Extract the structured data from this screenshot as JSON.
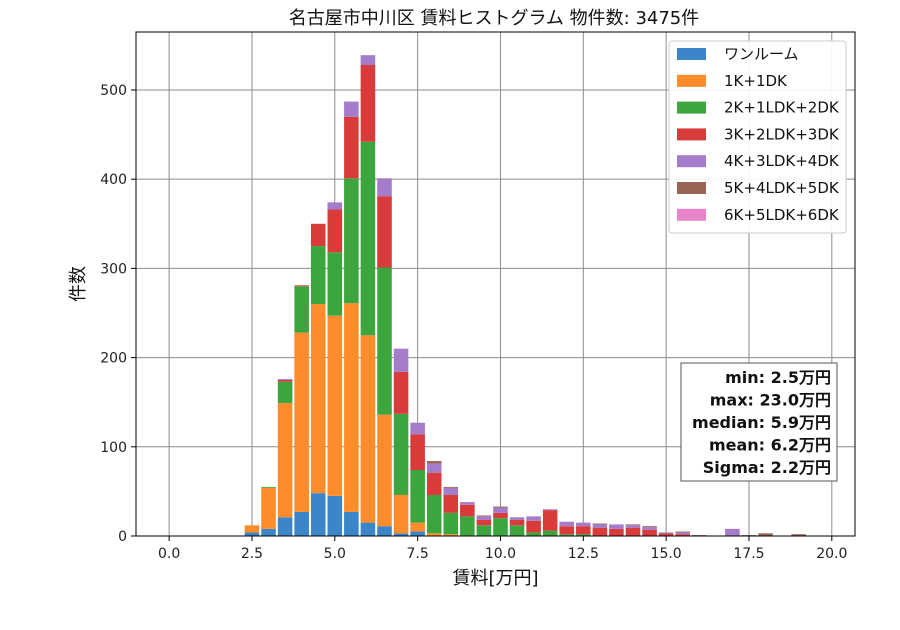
{
  "chart_data": {
    "type": "bar",
    "stacked": true,
    "title": "名古屋市中川区 賃料ヒストグラム 物件数: 3475件",
    "xlabel": "賃料[万円]",
    "ylabel": "件数",
    "xlim": [
      -1.0,
      20.7
    ],
    "ylim": [
      0,
      565
    ],
    "xticks": [
      "0.0",
      "2.5",
      "5.0",
      "7.5",
      "10.0",
      "12.5",
      "15.0",
      "17.5",
      "20.0"
    ],
    "xtick_values": [
      0,
      2.5,
      5,
      7.5,
      10,
      12.5,
      15,
      17.5,
      20
    ],
    "yticks": [
      0,
      100,
      200,
      300,
      400,
      500
    ],
    "grid": true,
    "bin_width": 0.5,
    "legend_position": "top-right",
    "x": [
      2.5,
      3.0,
      3.5,
      4.0,
      4.5,
      5.0,
      5.5,
      6.0,
      6.5,
      7.0,
      7.5,
      8.0,
      8.5,
      9.0,
      9.5,
      10.0,
      10.5,
      11.0,
      11.5,
      12.0,
      12.5,
      13.0,
      13.5,
      14.0,
      14.5,
      15.0,
      15.5,
      16.0,
      16.5,
      17.0,
      17.5,
      18.0,
      18.5,
      19.0,
      19.5,
      20.0
    ],
    "series": [
      {
        "name": "ワンルーム",
        "color": "#3a86c8",
        "values": [
          4,
          8,
          21,
          27,
          48,
          45,
          27,
          15,
          11,
          3,
          5,
          0,
          0,
          0,
          0,
          0,
          0,
          0,
          0,
          0,
          0,
          0,
          0,
          0,
          0,
          0,
          0,
          0,
          0,
          0,
          0,
          0,
          0,
          0,
          0,
          0
        ]
      },
      {
        "name": "1K+1DK",
        "color": "#ff8c2a",
        "values": [
          8,
          46,
          128,
          201,
          212,
          202,
          234,
          210,
          125,
          43,
          10,
          3,
          2,
          0,
          0,
          0,
          0,
          0,
          0,
          0,
          0,
          0,
          0,
          0,
          0,
          0,
          0,
          0,
          0,
          0,
          0,
          0,
          0,
          0,
          0,
          0
        ]
      },
      {
        "name": "2K+1LDK+2DK",
        "color": "#3da53d",
        "values": [
          0,
          1,
          24,
          52,
          65,
          71,
          140,
          217,
          165,
          91,
          59,
          43,
          24,
          22,
          12,
          20,
          12,
          4,
          6,
          2,
          2,
          0,
          0,
          0,
          0,
          0,
          0,
          0,
          0,
          0,
          0,
          0,
          0,
          0,
          0,
          0
        ]
      },
      {
        "name": "3K+2LDK+3DK",
        "color": "#d93b3b",
        "values": [
          0,
          0,
          2,
          1,
          25,
          48,
          69,
          86,
          80,
          47,
          40,
          25,
          20,
          13,
          6,
          6,
          6,
          13,
          23,
          9,
          9,
          9,
          8,
          9,
          7,
          3,
          2,
          0,
          0,
          0,
          0,
          0,
          0,
          0,
          0,
          0
        ]
      },
      {
        "name": "4K+3LDK+4DK",
        "color": "#a57cc9",
        "values": [
          0,
          0,
          1,
          0,
          0,
          8,
          17,
          11,
          20,
          26,
          13,
          10,
          8,
          3,
          4,
          6,
          3,
          5,
          1,
          5,
          4,
          4,
          5,
          3,
          3,
          1,
          2,
          0,
          0,
          8,
          0,
          0,
          0,
          0,
          0,
          0
        ]
      },
      {
        "name": "5K+4LDK+5DK",
        "color": "#9a6557",
        "values": [
          0,
          0,
          0,
          0,
          0,
          0,
          0,
          0,
          0,
          0,
          0,
          3,
          1,
          0,
          1,
          1,
          0,
          0,
          0,
          0,
          0,
          1,
          0,
          1,
          1,
          0,
          1,
          1,
          0,
          0,
          1,
          3,
          0,
          2,
          0,
          0
        ]
      },
      {
        "name": "6K+5LDK+6DK",
        "color": "#e884cb",
        "values": [
          0,
          0,
          0,
          0,
          0,
          0,
          0,
          0,
          0,
          0,
          0,
          0,
          0,
          0,
          0,
          0,
          0,
          0,
          0,
          0,
          0,
          0,
          0,
          0,
          0,
          0,
          0,
          0,
          0,
          0,
          0,
          0,
          0,
          0,
          0,
          0
        ]
      }
    ],
    "stats": [
      "min: 2.5万円",
      "max: 23.0万円",
      "median: 5.9万円",
      "mean: 6.2万円",
      "Sigma: 2.2万円"
    ]
  }
}
